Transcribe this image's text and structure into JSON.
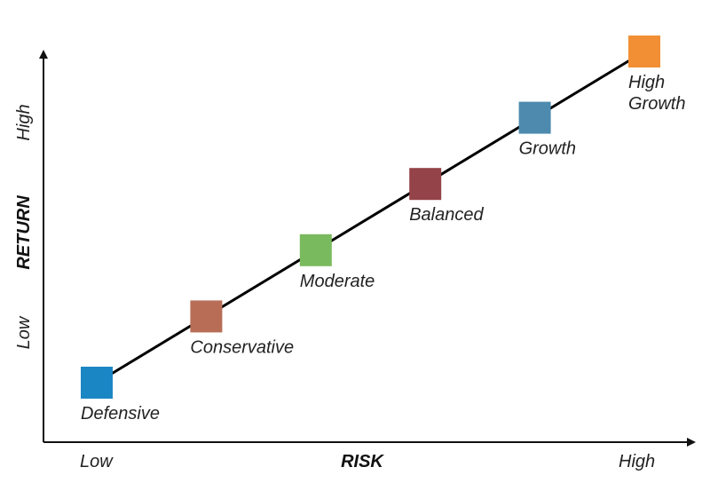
{
  "chart_data": {
    "type": "scatter",
    "xlabel": "RISK",
    "ylabel": "RETURN",
    "x_low_label": "Low",
    "x_high_label": "High",
    "y_low_label": "Low",
    "y_high_label": "High",
    "points": [
      {
        "label": "Defensive",
        "x": 1,
        "y": 1,
        "color": "#1b86c4"
      },
      {
        "label": "Conservative",
        "x": 2,
        "y": 2,
        "color": "#b86e56"
      },
      {
        "label": "Moderate",
        "x": 3,
        "y": 3,
        "color": "#7aba5e"
      },
      {
        "label": "Balanced",
        "x": 4,
        "y": 4,
        "color": "#944349"
      },
      {
        "label": "Growth",
        "x": 5,
        "y": 5,
        "color": "#4d8aae"
      },
      {
        "label": "High Growth",
        "label_lines": [
          "High",
          "Growth"
        ],
        "x": 6,
        "y": 6,
        "color": "#f28f34"
      }
    ],
    "line_color": "#000000",
    "grid": false
  }
}
